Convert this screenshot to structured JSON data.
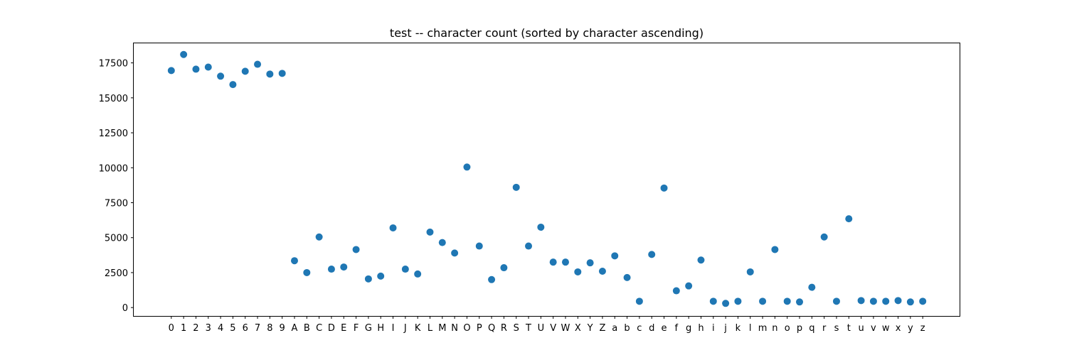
{
  "chart_data": {
    "type": "scatter",
    "title": "test -- character count (sorted by character ascending)",
    "xlabel": "",
    "ylabel": "",
    "ylim": [
      -600,
      18900
    ],
    "yticks": [
      0,
      2500,
      5000,
      7500,
      10000,
      12500,
      15000,
      17500
    ],
    "ytick_labels": [
      "0",
      "2500",
      "5000",
      "7500",
      "10000",
      "12500",
      "15000",
      "17500"
    ],
    "grid": false,
    "marker_color": "#1f77b4",
    "categories": [
      "0",
      "1",
      "2",
      "3",
      "4",
      "5",
      "6",
      "7",
      "8",
      "9",
      "A",
      "B",
      "C",
      "D",
      "E",
      "F",
      "G",
      "H",
      "I",
      "J",
      "K",
      "L",
      "M",
      "N",
      "O",
      "P",
      "Q",
      "R",
      "S",
      "T",
      "U",
      "V",
      "W",
      "X",
      "Y",
      "Z",
      "a",
      "b",
      "c",
      "d",
      "e",
      "f",
      "g",
      "h",
      "i",
      "j",
      "k",
      "l",
      "m",
      "n",
      "o",
      "p",
      "q",
      "r",
      "s",
      "t",
      "u",
      "v",
      "w",
      "x",
      "y",
      "z"
    ],
    "values": [
      16950,
      18100,
      17050,
      17200,
      16550,
      15950,
      16900,
      17400,
      16700,
      16750,
      3350,
      2500,
      5050,
      2750,
      2900,
      4150,
      2050,
      2250,
      5700,
      2750,
      2400,
      5400,
      4650,
      3900,
      10050,
      4400,
      2000,
      2850,
      8600,
      4400,
      5750,
      3250,
      3250,
      2550,
      3200,
      2600,
      3700,
      2150,
      450,
      3800,
      8550,
      1200,
      1550,
      3400,
      450,
      300,
      450,
      2550,
      450,
      4150,
      450,
      400,
      1450,
      5050,
      450,
      6350,
      500,
      450,
      450,
      500,
      400,
      450
    ]
  }
}
